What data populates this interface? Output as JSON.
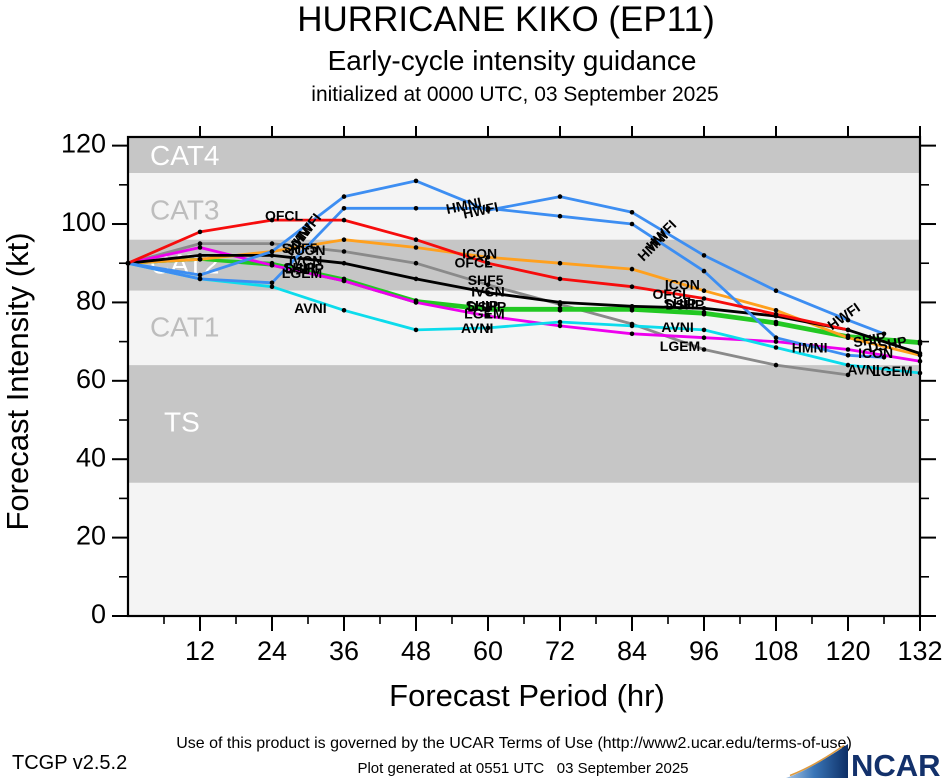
{
  "title": {
    "line1": "HURRICANE KIKO (EP11)",
    "line2": "Early-cycle intensity guidance",
    "line3": "initialized at 0000 UTC, 03 September 2025"
  },
  "footer": {
    "version": "TCGP v2.5.2",
    "terms": "Use of this product is governed by the UCAR Terms of Use (http://www2.ucar.edu/terms-of-use)",
    "generated": "Plot generated at 0551 UTC   03 September 2025",
    "logo_text": "NCAR"
  },
  "chart_data": {
    "type": "line",
    "xlabel": "Forecast Period (hr)",
    "ylabel": "Forecast Intensity (kt)",
    "x_range": [
      0,
      132
    ],
    "y_range": [
      0,
      122.2
    ],
    "x_ticks": [
      12,
      24,
      36,
      48,
      60,
      72,
      84,
      96,
      108,
      120,
      132
    ],
    "x_minor_step": 6,
    "y_ticks": [
      0,
      20,
      40,
      60,
      80,
      100,
      120
    ],
    "y_minor_step": 10,
    "grid": false,
    "plot_bg": "#f4f4f4",
    "band_dark": "#c6c6c6",
    "band_light": "#f4f4f4",
    "marker_color": "#000000",
    "bands": [
      {
        "name": "CAT4",
        "from_kt": 113,
        "to_kt": 123,
        "shade": "dark",
        "label_kt": 117.0,
        "label_color": "#ffffff"
      },
      {
        "name": "CAT3",
        "from_kt": 96,
        "to_kt": 113,
        "shade": "light",
        "label_kt": 103.0,
        "label_color": "#bdbdbd"
      },
      {
        "name": "CAT2",
        "from_kt": 83,
        "to_kt": 96,
        "shade": "dark",
        "label_kt": 89.3,
        "label_color": "#ffffff"
      },
      {
        "name": "CAT1",
        "from_kt": 64,
        "to_kt": 83,
        "shade": "light",
        "label_kt": 73.2,
        "label_color": "#bdbdbd"
      },
      {
        "name": "TS",
        "from_kt": 34,
        "to_kt": 64,
        "shade": "dark",
        "label_kt": 49.0,
        "label_color": "#ffffff",
        "label_indent": 14
      }
    ],
    "series": [
      {
        "name": "SHF5",
        "color": "#8a8a8a",
        "hours": [
          0,
          12,
          24,
          36,
          48,
          60,
          72,
          84,
          96,
          108,
          120
        ],
        "values": [
          90,
          95,
          95,
          93,
          90,
          84.5,
          79.5,
          74.5,
          68,
          64,
          61.5
        ]
      },
      {
        "name": "SHIP",
        "color": "#22c822",
        "hours": [
          0,
          12,
          24,
          36,
          48,
          60,
          72,
          84,
          96,
          108,
          120,
          132
        ],
        "values": [
          90,
          91,
          89.5,
          85.5,
          80,
          78,
          78,
          78,
          77,
          74.5,
          71,
          69.5
        ]
      },
      {
        "name": "DSHP",
        "color": "#22c822",
        "hours": [
          0,
          12,
          24,
          36,
          48,
          60,
          72,
          84,
          96,
          108,
          120,
          132
        ],
        "values": [
          90,
          91,
          90,
          86,
          80.5,
          78.5,
          78.5,
          78.5,
          77.5,
          75,
          71.5,
          70
        ]
      },
      {
        "name": "LGEM",
        "color": "#ee00ee",
        "hours": [
          0,
          12,
          24,
          36,
          48,
          60,
          72,
          84,
          96,
          108,
          120,
          132
        ],
        "values": [
          90,
          94,
          89.5,
          85.5,
          80,
          76.5,
          74,
          72,
          71,
          70,
          68,
          65
        ]
      },
      {
        "name": "AVNI",
        "color": "#0cdcec",
        "hours": [
          0,
          12,
          24,
          36,
          48,
          60,
          72,
          84,
          96,
          108,
          120,
          132
        ],
        "values": [
          90,
          86,
          84,
          78,
          73,
          73.5,
          75,
          74,
          73,
          68.5,
          64,
          62
        ]
      },
      {
        "name": "ICON",
        "color": "#ffa01e",
        "hours": [
          0,
          12,
          24,
          36,
          48,
          60,
          72,
          84,
          96,
          108,
          120,
          132
        ],
        "values": [
          90,
          91,
          93,
          96,
          94,
          91.5,
          90,
          88.5,
          83,
          78,
          71,
          66.5
        ]
      },
      {
        "name": "IVCN",
        "color": "#000000",
        "hours": [
          0,
          12,
          24,
          36,
          48,
          60,
          72,
          84,
          96,
          108,
          120,
          132
        ],
        "values": [
          90,
          92,
          92,
          90,
          86,
          82.5,
          80,
          79,
          78.5,
          76.5,
          73,
          67
        ]
      },
      {
        "name": "HMNI",
        "color": "#3d8ef2",
        "hours": [
          0,
          12,
          24,
          36,
          48,
          60,
          72,
          84,
          96,
          108,
          120,
          126
        ],
        "values": [
          90,
          86,
          85,
          104,
          104,
          104,
          102,
          100,
          88,
          71,
          66.5,
          66
        ]
      },
      {
        "name": "HWFI",
        "color": "#3d8ef2",
        "hours": [
          0,
          12,
          24,
          36,
          48,
          60,
          72,
          84,
          96,
          108,
          120,
          126
        ],
        "values": [
          90,
          87,
          93,
          107,
          111,
          103.5,
          107,
          103,
          92,
          83,
          75.5,
          72
        ]
      },
      {
        "name": "OFCL",
        "color": "#f60c0c",
        "hours": [
          0,
          12,
          24,
          36,
          48,
          60,
          72,
          84,
          96,
          108,
          120
        ],
        "values": [
          90,
          98,
          101,
          101,
          96,
          90,
          86,
          84,
          81,
          77,
          73
        ]
      }
    ],
    "line_labels": [
      {
        "t": "OFCL",
        "hr": 26,
        "kt": 101.8,
        "rot": 0
      },
      {
        "t": "HWFI",
        "hr": 30,
        "kt": 98.5,
        "rot": -52
      },
      {
        "t": "HMNI",
        "hr": 28.6,
        "kt": 95.8,
        "rot": -52
      },
      {
        "t": "SHF5",
        "hr": 28.6,
        "kt": 93.6,
        "rot": 0
      },
      {
        "t": "ICON",
        "hr": 30,
        "kt": 93.0,
        "rot": 0
      },
      {
        "t": "IVCN",
        "hr": 29.6,
        "kt": 90.4,
        "rot": 0
      },
      {
        "t": "SHIP",
        "hr": 28.6,
        "kt": 88.6,
        "rot": 0
      },
      {
        "t": "DSHP",
        "hr": 29.4,
        "kt": 88.3,
        "rot": 0
      },
      {
        "t": "LGEM",
        "hr": 29,
        "kt": 87.2,
        "rot": 0
      },
      {
        "t": "AVNI",
        "hr": 30.4,
        "kt": 78.2,
        "rot": 0
      },
      {
        "t": "HMNI",
        "hr": 56,
        "kt": 104.4,
        "rot": -12
      },
      {
        "t": "HWFI",
        "hr": 58.8,
        "kt": 103.2,
        "rot": -12
      },
      {
        "t": "ICON",
        "hr": 58.6,
        "kt": 92.2,
        "rot": 0
      },
      {
        "t": "OFCL",
        "hr": 57.6,
        "kt": 89.8,
        "rot": 0
      },
      {
        "t": "SHF5",
        "hr": 59.6,
        "kt": 85.4,
        "rot": 0
      },
      {
        "t": "IVCN",
        "hr": 60,
        "kt": 82.4,
        "rot": 0
      },
      {
        "t": "SHIP",
        "hr": 59,
        "kt": 78.9,
        "rot": 0
      },
      {
        "t": "DSHP",
        "hr": 59.8,
        "kt": 78.6,
        "rot": 0
      },
      {
        "t": "LGEM",
        "hr": 59.4,
        "kt": 76.9,
        "rot": 0
      },
      {
        "t": "AVNI",
        "hr": 58.2,
        "kt": 73.2,
        "rot": 0
      },
      {
        "t": "HWFI",
        "hr": 89,
        "kt": 97.0,
        "rot": -45
      },
      {
        "t": "HMNI",
        "hr": 87.6,
        "kt": 94.2,
        "rot": -45
      },
      {
        "t": "ICON",
        "hr": 92.4,
        "kt": 84.2,
        "rot": 0
      },
      {
        "t": "OFCL",
        "hr": 90.6,
        "kt": 81.8,
        "rot": 0
      },
      {
        "t": "SHIP",
        "hr": 92,
        "kt": 79.4,
        "rot": 0
      },
      {
        "t": "DSHP",
        "hr": 92.8,
        "kt": 79.1,
        "rot": 0
      },
      {
        "t": "AVNI",
        "hr": 91.6,
        "kt": 73.4,
        "rot": 0
      },
      {
        "t": "LGEM",
        "hr": 92,
        "kt": 68.6,
        "rot": 0
      },
      {
        "t": "HMNI",
        "hr": 113.6,
        "kt": 68.2,
        "rot": 0
      },
      {
        "t": "HWFI",
        "hr": 119.4,
        "kt": 76.2,
        "rot": -35
      },
      {
        "t": "SHIP",
        "hr": 123.6,
        "kt": 70.2,
        "rot": -10
      },
      {
        "t": "DSHP",
        "hr": 126.6,
        "kt": 69.0,
        "rot": -10
      },
      {
        "t": "ICON",
        "hr": 124.6,
        "kt": 66.8,
        "rot": 0
      },
      {
        "t": "AVNI",
        "hr": 122.6,
        "kt": 62.6,
        "rot": 0
      },
      {
        "t": "LGEM",
        "hr": 127.4,
        "kt": 62.2,
        "rot": 0
      }
    ]
  }
}
